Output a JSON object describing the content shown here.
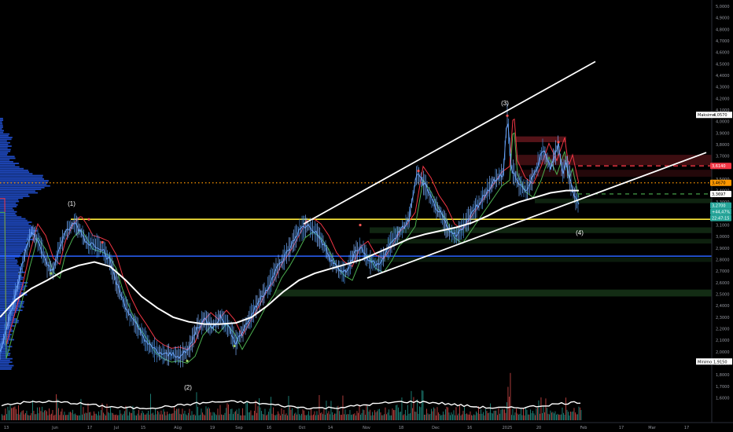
{
  "chart_data": {
    "type": "candlestick",
    "title": "",
    "y_axis": {
      "ticks": [
        "5,0000",
        "4,9000",
        "4,8000",
        "4,7000",
        "4,6000",
        "4,5000",
        "4,4000",
        "4,3000",
        "4,2000",
        "4,1000",
        "4,0000",
        "3,9000",
        "3,8000",
        "3,7000",
        "3,6000",
        "3,5000",
        "3,4000",
        "3,3000",
        "3,2000",
        "3,1000",
        "3,0000",
        "2,9000",
        "2,8000",
        "2,7000",
        "2,6000",
        "2,5000",
        "2,4000",
        "2,3000",
        "2,2000",
        "2,1000",
        "2,0000",
        "1,9000",
        "1,8000",
        "1,7000",
        "1,6000"
      ],
      "range": [
        1.55,
        5.05
      ],
      "side": "right"
    },
    "x_axis": {
      "ticks": [
        "13",
        "Jun",
        "17",
        "Jul",
        "15",
        "Aŭg",
        "19",
        "Sep",
        "16",
        "Oct",
        "14",
        "Nov",
        "18",
        "Dec",
        "16",
        "2025",
        "20",
        "Feb",
        "17",
        "Mar",
        "17"
      ]
    },
    "price_tags": {
      "high": {
        "label": "Maksimo",
        "value": "4,0570"
      },
      "low": {
        "label": "Minimo",
        "value": "1,9150"
      },
      "resistance": {
        "value": "3,6140"
      },
      "poc": {
        "value": "3,4670"
      },
      "level_a": {
        "value": "3,3697"
      },
      "last": {
        "value": "3,2700"
      },
      "change": {
        "value": "+44,47%"
      },
      "countdown": {
        "value": "22:47:15"
      }
    },
    "wave_labels": [
      "(1)",
      "(2)",
      "(3)",
      "(4)"
    ],
    "levels": {
      "yellow_support": 3.15,
      "blue_line": 2.83,
      "orange_dotted": 3.467,
      "red_dashed": 3.614,
      "green_dashed": 3.37
    },
    "price_path": [
      [
        0,
        2.0
      ],
      [
        10,
        2.25
      ],
      [
        20,
        2.5
      ],
      [
        30,
        2.8
      ],
      [
        40,
        3.05
      ],
      [
        50,
        2.95
      ],
      [
        60,
        2.75
      ],
      [
        68,
        2.7
      ],
      [
        75,
        2.9
      ],
      [
        85,
        3.05
      ],
      [
        95,
        3.12
      ],
      [
        102,
        3.05
      ],
      [
        110,
        2.95
      ],
      [
        120,
        2.93
      ],
      [
        130,
        2.9
      ],
      [
        140,
        2.78
      ],
      [
        148,
        2.6
      ],
      [
        158,
        2.42
      ],
      [
        168,
        2.28
      ],
      [
        178,
        2.18
      ],
      [
        190,
        2.05
      ],
      [
        200,
        2.0
      ],
      [
        210,
        1.97
      ],
      [
        220,
        1.98
      ],
      [
        230,
        1.96
      ],
      [
        240,
        2.02
      ],
      [
        250,
        2.2
      ],
      [
        260,
        2.28
      ],
      [
        270,
        2.22
      ],
      [
        280,
        2.3
      ],
      [
        290,
        2.22
      ],
      [
        300,
        2.08
      ],
      [
        310,
        2.2
      ],
      [
        320,
        2.32
      ],
      [
        330,
        2.45
      ],
      [
        340,
        2.55
      ],
      [
        350,
        2.7
      ],
      [
        360,
        2.8
      ],
      [
        370,
        2.92
      ],
      [
        380,
        3.05
      ],
      [
        390,
        3.1
      ],
      [
        400,
        3.05
      ],
      [
        410,
        2.95
      ],
      [
        420,
        2.8
      ],
      [
        430,
        2.72
      ],
      [
        440,
        2.68
      ],
      [
        450,
        2.85
      ],
      [
        460,
        2.9
      ],
      [
        470,
        2.78
      ],
      [
        480,
        2.75
      ],
      [
        490,
        2.85
      ],
      [
        500,
        2.98
      ],
      [
        510,
        3.05
      ],
      [
        520,
        3.15
      ],
      [
        530,
        3.55
      ],
      [
        540,
        3.45
      ],
      [
        550,
        3.3
      ],
      [
        560,
        3.2
      ],
      [
        570,
        3.05
      ],
      [
        580,
        3.0
      ],
      [
        590,
        3.1
      ],
      [
        600,
        3.2
      ],
      [
        610,
        3.3
      ],
      [
        620,
        3.4
      ],
      [
        630,
        3.5
      ],
      [
        640,
        3.55
      ],
      [
        645,
        4.05
      ],
      [
        650,
        3.6
      ],
      [
        660,
        3.45
      ],
      [
        670,
        3.4
      ],
      [
        680,
        3.55
      ],
      [
        690,
        3.75
      ],
      [
        700,
        3.6
      ],
      [
        710,
        3.8
      ],
      [
        715,
        3.55
      ],
      [
        720,
        3.65
      ],
      [
        728,
        3.4
      ],
      [
        736,
        3.27
      ]
    ],
    "vwap_path": [
      [
        0,
        2.3
      ],
      [
        20,
        2.45
      ],
      [
        40,
        2.55
      ],
      [
        60,
        2.62
      ],
      [
        80,
        2.7
      ],
      [
        100,
        2.75
      ],
      [
        120,
        2.78
      ],
      [
        140,
        2.74
      ],
      [
        160,
        2.62
      ],
      [
        180,
        2.48
      ],
      [
        200,
        2.38
      ],
      [
        220,
        2.3
      ],
      [
        240,
        2.26
      ],
      [
        260,
        2.24
      ],
      [
        280,
        2.24
      ],
      [
        300,
        2.25
      ],
      [
        320,
        2.3
      ],
      [
        340,
        2.4
      ],
      [
        360,
        2.52
      ],
      [
        380,
        2.62
      ],
      [
        400,
        2.68
      ],
      [
        420,
        2.72
      ],
      [
        440,
        2.76
      ],
      [
        460,
        2.8
      ],
      [
        480,
        2.86
      ],
      [
        500,
        2.92
      ],
      [
        520,
        2.98
      ],
      [
        540,
        3.02
      ],
      [
        560,
        3.05
      ],
      [
        580,
        3.08
      ],
      [
        600,
        3.12
      ],
      [
        620,
        3.18
      ],
      [
        640,
        3.25
      ],
      [
        660,
        3.3
      ],
      [
        680,
        3.34
      ],
      [
        700,
        3.38
      ],
      [
        720,
        3.4
      ],
      [
        736,
        3.4
      ]
    ],
    "channel_lines": [
      {
        "from": [
          386,
          3.11
        ],
        "to": [
          757,
          4.52
        ],
        "color": "#ffffff"
      },
      {
        "from": [
          467,
          2.64
        ],
        "to": [
          898,
          3.73
        ],
        "color": "#ffffff"
      }
    ],
    "colors": {
      "up": "#26a69a",
      "down": "#ef5350",
      "blue_line": "#2962ff",
      "yellow": "#ffeb3b",
      "orange": "#ff9800",
      "volume_profile": "#2962ff",
      "band_up": "#4caf50",
      "band_down": "#f23645"
    }
  }
}
